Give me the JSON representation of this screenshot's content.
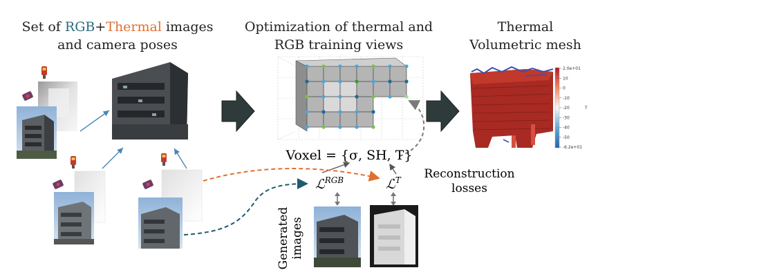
{
  "captions": {
    "input_prefix": "Set of ",
    "input_rgb": "RGB",
    "input_plus": "+",
    "input_thermal": "Thermal",
    "input_suffix": " images",
    "input_line2": "and camera poses",
    "optim_line1": "Optimization of thermal and",
    "optim_line2": "RGB training views",
    "output_line1": "Thermal",
    "output_line2": "Volumetric mesh"
  },
  "voxel_equation": "Voxel = {σ, SH, T}",
  "losses": {
    "rgb_main": "ℒ",
    "rgb_sup": "RGB",
    "thermal_main": "ℒ",
    "thermal_sup": "T",
    "label_line1": "Reconstruction",
    "label_line2": "losses"
  },
  "generated_label": {
    "line1": "Generated",
    "line2": "images"
  },
  "colorbar": {
    "ticks": [
      "2.0e+01",
      "10",
      "0",
      "-10",
      "-20",
      "-30",
      "-40",
      "-50",
      "-6.2e+01"
    ],
    "axis_label": "T"
  },
  "colors": {
    "rgb_text": "#2a6b7c",
    "thermal_text": "#e07030",
    "thermal_curve": "#e07030",
    "rgb_curve": "#1f5a70",
    "camera_arrow": "#4a86b0",
    "big_arrow_fill": "#2f3a3a",
    "dashed_gray": "#7a7a7a"
  }
}
